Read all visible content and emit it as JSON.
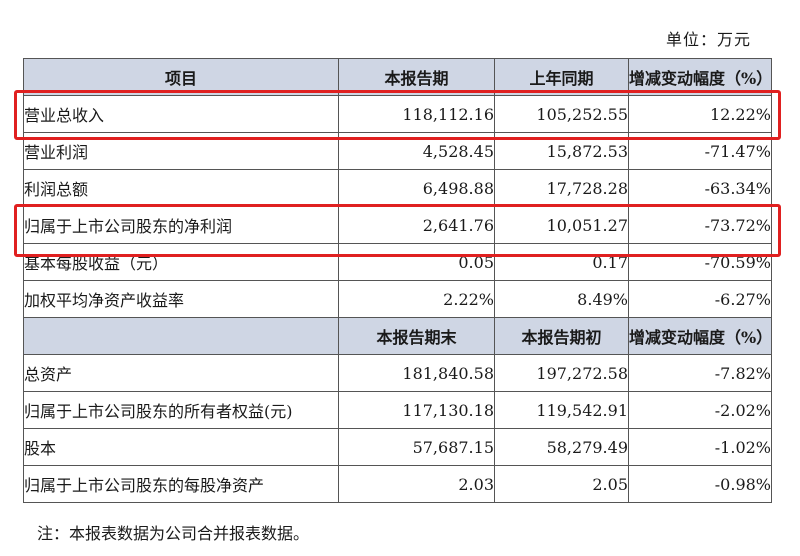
{
  "unit_label": "单位：万元",
  "headers": {
    "item": "项目",
    "current": "本报告期",
    "prior": "上年同期",
    "change": "增减变动幅度（%）"
  },
  "income_rows": [
    {
      "label": "营业总收入",
      "current": "118,112.16",
      "prior": "105,252.55",
      "change": "12.22%"
    },
    {
      "label": "营业利润",
      "current": "4,528.45",
      "prior": "15,872.53",
      "change": "-71.47%"
    },
    {
      "label": "利润总额",
      "current": "6,498.88",
      "prior": "17,728.28",
      "change": "-63.34%"
    },
    {
      "label": "归属于上市公司股东的净利润",
      "current": "2,641.76",
      "prior": "10,051.27",
      "change": "-73.72%"
    },
    {
      "label": "基本每股收益（元）",
      "current": "0.05",
      "prior": "0.17",
      "change": "-70.59%"
    },
    {
      "label": "加权平均净资产收益率",
      "current": "2.22%",
      "prior": "8.49%",
      "change": "-6.27%"
    }
  ],
  "balance_headers": {
    "end": "本报告期末",
    "begin": "本报告期初",
    "change": "增减变动幅度（%）"
  },
  "balance_rows": [
    {
      "label": "总资产",
      "current": "181,840.58",
      "prior": "197,272.58",
      "change": "-7.82%"
    },
    {
      "label": "归属于上市公司股东的所有者权益(元)",
      "current": "117,130.18",
      "prior": "119,542.91",
      "change": "-2.02%"
    },
    {
      "label": "股本",
      "current": "57,687.15",
      "prior": "58,279.49",
      "change": "-1.02%"
    },
    {
      "label": "归属于上市公司股东的每股净资产",
      "current": "2.03",
      "prior": "2.05",
      "change": "-0.98%"
    }
  ],
  "note": "注：本报表数据为公司合并报表数据。",
  "colors": {
    "header_fill": "#cfd6e4",
    "highlight_border": "#e02020",
    "grid": "#555555"
  }
}
